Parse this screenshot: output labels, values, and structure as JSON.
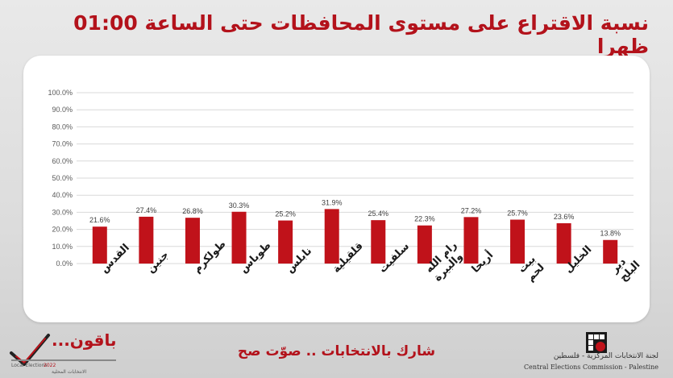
{
  "title": "نسبة الاقتراع على مستوى المحافظات حتى الساعة 01:00 ظهرا",
  "footer": {
    "slogan": "شارك بالانتخابات .. صوّت صح",
    "cec_ar": "لجنة الانتخابات المركزية - فلسطين",
    "cec_en": "Central Elections Commission - Palestine",
    "bakun_word": "باقون...",
    "bakun_en": "Local Elections",
    "bakun_year": "2022",
    "bakun_ar": "الانتخابات المحلية"
  },
  "colors": {
    "bar": "#c0121a",
    "title": "#b3121b",
    "grid": "#d9d9d9"
  },
  "chart_data": {
    "type": "bar",
    "categories": [
      "القدس",
      "جنين",
      "طولكرم",
      "طوباس",
      "نابلس",
      "قلقيلية",
      "سلفيت",
      "رام الله والبيرة",
      "أريحا",
      "بيت لحم",
      "الخليل",
      "دير البلح"
    ],
    "values": [
      21.6,
      27.4,
      26.8,
      30.3,
      25.2,
      31.9,
      25.4,
      22.3,
      27.2,
      25.7,
      23.6,
      13.8
    ],
    "value_labels": [
      "21.6%",
      "27.4%",
      "26.8%",
      "30.3%",
      "25.2%",
      "31.9%",
      "25.4%",
      "22.3%",
      "27.2%",
      "25.7%",
      "23.6%",
      "13.8%"
    ],
    "y_ticks": [
      "0.0%",
      "10.0%",
      "20.0%",
      "30.0%",
      "40.0%",
      "50.0%",
      "60.0%",
      "70.0%",
      "80.0%",
      "90.0%",
      "100.0%"
    ],
    "ylim": [
      0,
      100
    ],
    "grid": true,
    "legend": "none"
  }
}
